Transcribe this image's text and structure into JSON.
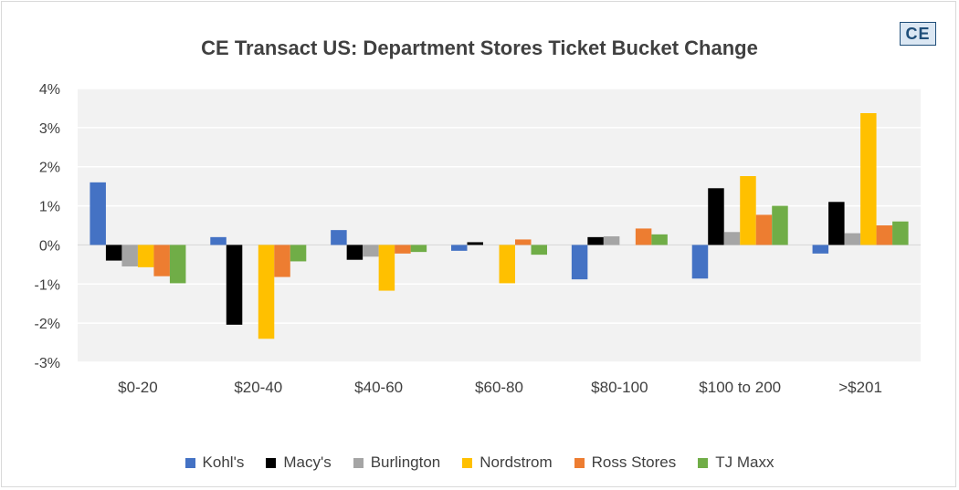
{
  "chart_data": {
    "type": "bar",
    "title": "CE Transact US: Department Stores Ticket Bucket Change",
    "badge": "CE",
    "xlabel": "",
    "ylabel": "",
    "ylim": [
      -3,
      4
    ],
    "yticks": [
      4,
      3,
      2,
      1,
      0,
      -1,
      -2,
      -3
    ],
    "ytick_labels": [
      "4%",
      "3%",
      "2%",
      "1%",
      "0%",
      "-1%",
      "-2%",
      "-3%"
    ],
    "grid": true,
    "legend_position": "bottom",
    "categories": [
      "$0-20",
      "$20-40",
      "$40-60",
      "$60-80",
      "$80-100",
      "$100 to 200",
      ">$201"
    ],
    "series": [
      {
        "name": "Kohl's",
        "color": "#4472C4",
        "values": [
          1.6,
          0.2,
          0.38,
          -0.15,
          -0.88,
          -0.86,
          -0.22
        ]
      },
      {
        "name": "Macy's",
        "color": "#000000",
        "values": [
          -0.4,
          -2.04,
          -0.38,
          0.07,
          0.2,
          1.45,
          1.1
        ]
      },
      {
        "name": "Burlington",
        "color": "#A5A5A5",
        "values": [
          -0.55,
          0.0,
          -0.3,
          0.0,
          0.22,
          0.33,
          0.3
        ]
      },
      {
        "name": "Nordstrom",
        "color": "#FFC000",
        "values": [
          -0.57,
          -2.4,
          -1.17,
          -0.98,
          0.0,
          1.76,
          3.37
        ]
      },
      {
        "name": "Ross Stores",
        "color": "#ED7D31",
        "values": [
          -0.8,
          -0.82,
          -0.22,
          0.14,
          0.42,
          0.77,
          0.5
        ]
      },
      {
        "name": "TJ Maxx",
        "color": "#70AD47",
        "values": [
          -0.98,
          -0.42,
          -0.18,
          -0.25,
          0.27,
          1.0,
          0.6
        ]
      }
    ]
  }
}
